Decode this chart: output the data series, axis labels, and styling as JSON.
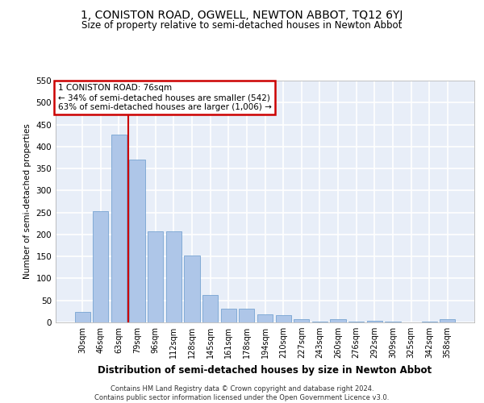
{
  "title": "1, CONISTON ROAD, OGWELL, NEWTON ABBOT, TQ12 6YJ",
  "subtitle": "Size of property relative to semi-detached houses in Newton Abbot",
  "xlabel": "Distribution of semi-detached houses by size in Newton Abbot",
  "ylabel": "Number of semi-detached properties",
  "footer1": "Contains HM Land Registry data © Crown copyright and database right 2024.",
  "footer2": "Contains public sector information licensed under the Open Government Licence v3.0.",
  "categories": [
    "30sqm",
    "46sqm",
    "63sqm",
    "79sqm",
    "96sqm",
    "112sqm",
    "128sqm",
    "145sqm",
    "161sqm",
    "178sqm",
    "194sqm",
    "210sqm",
    "227sqm",
    "243sqm",
    "260sqm",
    "276sqm",
    "292sqm",
    "309sqm",
    "325sqm",
    "342sqm",
    "358sqm"
  ],
  "values": [
    24,
    253,
    428,
    370,
    208,
    208,
    152,
    62,
    32,
    32,
    18,
    16,
    8,
    1,
    7,
    1,
    4,
    1,
    0,
    1,
    7
  ],
  "bar_color": "#aec6e8",
  "bar_edge_color": "#6699cc",
  "ylim": [
    0,
    550
  ],
  "yticks": [
    0,
    50,
    100,
    150,
    200,
    250,
    300,
    350,
    400,
    450,
    500,
    550
  ],
  "bg_color": "#e8eef8",
  "grid_color": "#ffffff",
  "annotation_box_color": "#ffffff",
  "annotation_box_edge": "#cc0000",
  "vline_color": "#cc0000",
  "property_label": "1 CONISTON ROAD: 76sqm",
  "pct_smaller": 34,
  "n_smaller": 542,
  "pct_larger": 63,
  "n_larger": 1006,
  "vline_index": 2.5
}
